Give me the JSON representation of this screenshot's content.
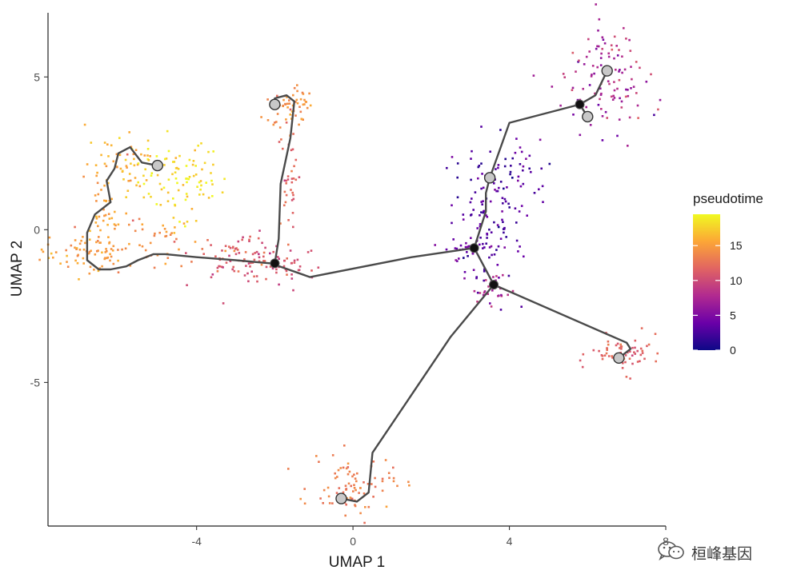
{
  "chart_data": {
    "type": "scatter",
    "xlabel": "UMAP 1",
    "ylabel": "UMAP 2",
    "xlim": [
      -7.8,
      8.0
    ],
    "ylim": [
      -9.7,
      7.1
    ],
    "x_ticks": [
      -4,
      0,
      4,
      8
    ],
    "x_tick_labels": [
      "-4",
      "0",
      "4",
      "8"
    ],
    "y_ticks": [
      -5,
      0,
      5
    ],
    "y_tick_labels": [
      "-5",
      "0",
      "5"
    ],
    "grid": false,
    "color_scale": {
      "title": "pseudotime",
      "min": 0,
      "max": 19.5,
      "ticks": [
        0,
        5,
        10,
        15
      ],
      "tick_labels": [
        "0",
        "5",
        "10",
        "15"
      ],
      "palette": "plasma",
      "stops": [
        "#0d0887",
        "#6a00a8",
        "#b12a90",
        "#e16462",
        "#fca636",
        "#f0f921"
      ]
    },
    "legend_position": "right",
    "clusters": [
      {
        "cx": -4.4,
        "cy": 1.6,
        "sx": 0.55,
        "sy": 0.65,
        "n": 85,
        "t": 18.2,
        "tj": 1.2
      },
      {
        "cx": -5.8,
        "cy": 2.2,
        "sx": 0.5,
        "sy": 0.55,
        "n": 55,
        "t": 16.3,
        "tj": 1.2
      },
      {
        "cx": -6.3,
        "cy": 0.3,
        "sx": 0.3,
        "sy": 0.75,
        "n": 45,
        "t": 15.3,
        "tj": 0.8
      },
      {
        "cx": -6.8,
        "cy": -0.7,
        "sx": 0.55,
        "sy": 0.35,
        "n": 70,
        "t": 14.8,
        "tj": 0.9
      },
      {
        "cx": -5.2,
        "cy": -0.5,
        "sx": 0.55,
        "sy": 0.45,
        "n": 35,
        "t": 14.2,
        "tj": 1.0
      },
      {
        "cx": -3.0,
        "cy": -0.8,
        "sx": 0.55,
        "sy": 0.4,
        "n": 80,
        "t": 11.2,
        "tj": 1.2
      },
      {
        "cx": -1.8,
        "cy": -1.2,
        "sx": 0.45,
        "sy": 0.35,
        "n": 40,
        "t": 10.3,
        "tj": 0.8
      },
      {
        "cx": -1.6,
        "cy": 1.8,
        "sx": 0.18,
        "sy": 1.0,
        "n": 35,
        "t": 11.8,
        "tj": 1.0
      },
      {
        "cx": -1.6,
        "cy": 4.1,
        "sx": 0.3,
        "sy": 0.35,
        "n": 55,
        "t": 14.3,
        "tj": 0.8
      },
      {
        "cx": 3.4,
        "cy": 0.3,
        "sx": 0.45,
        "sy": 1.3,
        "n": 110,
        "t": 2.6,
        "tj": 1.3
      },
      {
        "cx": 4.1,
        "cy": 1.8,
        "sx": 0.45,
        "sy": 0.7,
        "n": 40,
        "t": 3.2,
        "tj": 1.0
      },
      {
        "cx": 3.0,
        "cy": -0.6,
        "sx": 0.3,
        "sy": 0.25,
        "n": 25,
        "t": 4.2,
        "tj": 0.8
      },
      {
        "cx": 3.6,
        "cy": -2.0,
        "sx": 0.3,
        "sy": 0.3,
        "n": 25,
        "t": 7.8,
        "tj": 0.9
      },
      {
        "cx": 6.5,
        "cy": 4.9,
        "sx": 0.5,
        "sy": 0.9,
        "n": 110,
        "t": 7.8,
        "tj": 1.8
      },
      {
        "cx": 7.0,
        "cy": -4.1,
        "sx": 0.45,
        "sy": 0.3,
        "n": 60,
        "t": 11.4,
        "tj": 0.8
      },
      {
        "cx": 0.0,
        "cy": -8.4,
        "sx": 0.55,
        "sy": 0.45,
        "n": 85,
        "t": 13.3,
        "tj": 0.8
      }
    ],
    "trajectory": [
      [
        [
          -5.0,
          2.1
        ],
        [
          -5.4,
          2.2
        ],
        [
          -5.7,
          2.7
        ],
        [
          -6.0,
          2.5
        ],
        [
          -6.1,
          2.0
        ],
        [
          -6.3,
          1.6
        ],
        [
          -6.2,
          0.9
        ],
        [
          -6.6,
          0.5
        ],
        [
          -6.8,
          -0.1
        ],
        [
          -6.8,
          -1.0
        ],
        [
          -6.5,
          -1.3
        ],
        [
          -6.2,
          -1.3
        ],
        [
          -5.8,
          -1.2
        ],
        [
          -5.5,
          -1.0
        ],
        [
          -5.3,
          -0.9
        ],
        [
          -5.1,
          -0.8
        ],
        [
          -4.8,
          -0.8
        ],
        [
          -4.0,
          -0.9
        ],
        [
          -3.0,
          -1.0
        ],
        [
          -2.1,
          -1.1
        ],
        [
          -1.1,
          -1.55
        ],
        [
          1.5,
          -0.9
        ],
        [
          3.1,
          -0.6
        ],
        [
          3.6,
          -1.8
        ],
        [
          7.0,
          -3.7
        ],
        [
          7.1,
          -3.9
        ],
        [
          6.8,
          -4.2
        ]
      ],
      [
        [
          -2.0,
          -1.1
        ],
        [
          -1.9,
          -0.3
        ],
        [
          -1.85,
          1.5
        ],
        [
          -1.6,
          3.0
        ],
        [
          -1.5,
          4.2
        ],
        [
          -1.7,
          4.4
        ],
        [
          -2.0,
          4.3
        ],
        [
          -2.0,
          4.1
        ]
      ],
      [
        [
          3.1,
          -0.6
        ],
        [
          3.4,
          0.6
        ],
        [
          3.4,
          1.2
        ],
        [
          3.5,
          1.7
        ],
        [
          4.0,
          3.5
        ],
        [
          5.8,
          4.1
        ],
        [
          6.0,
          3.7
        ]
      ],
      [
        [
          5.8,
          4.1
        ],
        [
          6.2,
          4.4
        ],
        [
          6.5,
          5.2
        ]
      ],
      [
        [
          3.6,
          -1.8
        ],
        [
          2.5,
          -3.5
        ],
        [
          0.5,
          -7.3
        ],
        [
          0.4,
          -8.6
        ],
        [
          0.1,
          -8.9
        ],
        [
          -0.3,
          -8.8
        ]
      ]
    ],
    "leaf_nodes": [
      [
        -5.0,
        2.1
      ],
      [
        -2.0,
        4.1
      ],
      [
        3.5,
        1.7
      ],
      [
        6.5,
        5.2
      ],
      [
        6.0,
        3.7
      ],
      [
        6.8,
        -4.2
      ],
      [
        -0.3,
        -8.8
      ]
    ],
    "branch_nodes": [
      [
        -2.0,
        -1.1
      ],
      [
        3.1,
        -0.6
      ],
      [
        3.6,
        -1.8
      ],
      [
        5.8,
        4.1
      ]
    ]
  },
  "watermark": {
    "icon": "wechat-icon",
    "text": "桓峰基因"
  }
}
